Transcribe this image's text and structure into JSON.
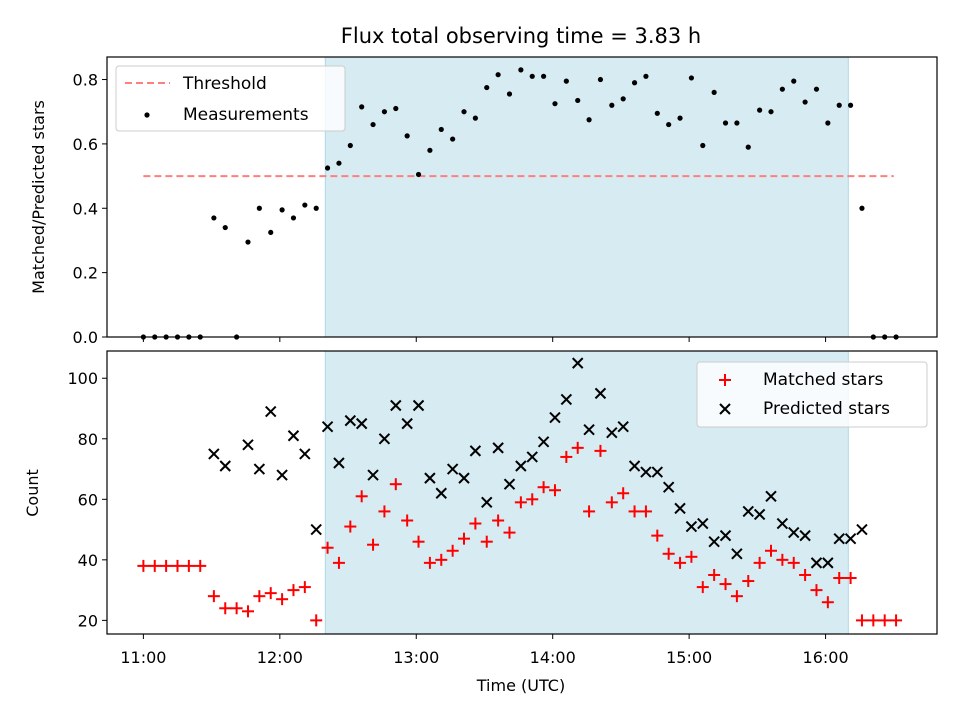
{
  "chart_data": [
    {
      "type": "scatter",
      "title": "Flux total observing time = 3.83 h",
      "xlabel": "",
      "ylabel": "Matched/Predicted stars",
      "xlim": [
        "10:44",
        "16:49"
      ],
      "ylim": [
        0,
        0.87
      ],
      "yticks": [
        "0.0",
        "0.2",
        "0.4",
        "0.6",
        "0.8"
      ],
      "grid": false,
      "legend_position": "upper left",
      "highlight_span": {
        "start": "12:20",
        "end": "16:10",
        "color": "#add8e6"
      },
      "threshold": {
        "name": "Threshold",
        "value": 0.5,
        "x_start": "11:00",
        "x_end": "16:30",
        "color": "#ff7f7f"
      },
      "series": [
        {
          "name": "Measurements",
          "color": "#000000",
          "points": [
            [
              "11:00",
              0.0
            ],
            [
              "11:05",
              0.0
            ],
            [
              "11:10",
              0.0
            ],
            [
              "11:15",
              0.0
            ],
            [
              "11:20",
              0.0
            ],
            [
              "11:25",
              0.0
            ],
            [
              "11:31",
              0.37
            ],
            [
              "11:36",
              0.34
            ],
            [
              "11:41",
              0.0
            ],
            [
              "11:46",
              0.295
            ],
            [
              "11:51",
              0.4
            ],
            [
              "11:56",
              0.325
            ],
            [
              "12:01",
              0.395
            ],
            [
              "12:06",
              0.37
            ],
            [
              "12:11",
              0.41
            ],
            [
              "12:16",
              0.4
            ],
            [
              "12:21",
              0.525
            ],
            [
              "12:26",
              0.54
            ],
            [
              "12:31",
              0.595
            ],
            [
              "12:36",
              0.715
            ],
            [
              "12:41",
              0.66
            ],
            [
              "12:46",
              0.7
            ],
            [
              "12:51",
              0.71
            ],
            [
              "12:56",
              0.625
            ],
            [
              "13:01",
              0.505
            ],
            [
              "13:06",
              0.58
            ],
            [
              "13:11",
              0.645
            ],
            [
              "13:16",
              0.615
            ],
            [
              "13:21",
              0.7
            ],
            [
              "13:26",
              0.68
            ],
            [
              "13:31",
              0.775
            ],
            [
              "13:36",
              0.815
            ],
            [
              "13:41",
              0.755
            ],
            [
              "13:46",
              0.83
            ],
            [
              "13:51",
              0.81
            ],
            [
              "13:56",
              0.81
            ],
            [
              "14:01",
              0.725
            ],
            [
              "14:06",
              0.795
            ],
            [
              "14:11",
              0.735
            ],
            [
              "14:16",
              0.675
            ],
            [
              "14:21",
              0.8
            ],
            [
              "14:26",
              0.72
            ],
            [
              "14:31",
              0.74
            ],
            [
              "14:36",
              0.79
            ],
            [
              "14:41",
              0.81
            ],
            [
              "14:46",
              0.695
            ],
            [
              "14:51",
              0.66
            ],
            [
              "14:56",
              0.68
            ],
            [
              "15:01",
              0.805
            ],
            [
              "15:06",
              0.595
            ],
            [
              "15:11",
              0.76
            ],
            [
              "15:16",
              0.665
            ],
            [
              "15:21",
              0.665
            ],
            [
              "15:26",
              0.59
            ],
            [
              "15:31",
              0.705
            ],
            [
              "15:36",
              0.7
            ],
            [
              "15:41",
              0.77
            ],
            [
              "15:46",
              0.795
            ],
            [
              "15:51",
              0.73
            ],
            [
              "15:56",
              0.77
            ],
            [
              "16:01",
              0.665
            ],
            [
              "16:06",
              0.72
            ],
            [
              "16:11",
              0.72
            ],
            [
              "16:16",
              0.4
            ],
            [
              "16:21",
              0.0
            ],
            [
              "16:26",
              0.0
            ],
            [
              "16:31",
              0.0
            ]
          ]
        }
      ]
    },
    {
      "type": "scatter",
      "title": "",
      "xlabel": "Time (UTC)",
      "ylabel": "Count",
      "xlim": [
        "10:44",
        "16:49"
      ],
      "ylim": [
        15.5,
        109
      ],
      "xticks": [
        "11:00",
        "12:00",
        "13:00",
        "14:00",
        "15:00",
        "16:00"
      ],
      "yticks": [
        "20",
        "40",
        "60",
        "80",
        "100"
      ],
      "grid": false,
      "legend_position": "upper right",
      "highlight_span": {
        "start": "12:20",
        "end": "16:10",
        "color": "#add8e6"
      },
      "series": [
        {
          "name": "Matched stars",
          "color": "#ff0000",
          "marker": "+",
          "points": [
            [
              "11:00",
              38
            ],
            [
              "11:05",
              38
            ],
            [
              "11:10",
              38
            ],
            [
              "11:15",
              38
            ],
            [
              "11:20",
              38
            ],
            [
              "11:25",
              38
            ],
            [
              "11:31",
              28
            ],
            [
              "11:36",
              24
            ],
            [
              "11:41",
              24
            ],
            [
              "11:46",
              23
            ],
            [
              "11:51",
              28
            ],
            [
              "11:56",
              29
            ],
            [
              "12:01",
              27
            ],
            [
              "12:06",
              30
            ],
            [
              "12:11",
              31
            ],
            [
              "12:16",
              20
            ],
            [
              "12:21",
              44
            ],
            [
              "12:26",
              39
            ],
            [
              "12:31",
              51
            ],
            [
              "12:36",
              61
            ],
            [
              "12:41",
              45
            ],
            [
              "12:46",
              56
            ],
            [
              "12:51",
              65
            ],
            [
              "12:56",
              53
            ],
            [
              "13:01",
              46
            ],
            [
              "13:06",
              39
            ],
            [
              "13:11",
              40
            ],
            [
              "13:16",
              43
            ],
            [
              "13:21",
              47
            ],
            [
              "13:26",
              52
            ],
            [
              "13:31",
              46
            ],
            [
              "13:36",
              53
            ],
            [
              "13:41",
              49
            ],
            [
              "13:46",
              59
            ],
            [
              "13:51",
              60
            ],
            [
              "13:56",
              64
            ],
            [
              "14:01",
              63
            ],
            [
              "14:06",
              74
            ],
            [
              "14:11",
              77
            ],
            [
              "14:16",
              56
            ],
            [
              "14:21",
              76
            ],
            [
              "14:26",
              59
            ],
            [
              "14:31",
              62
            ],
            [
              "14:36",
              56
            ],
            [
              "14:41",
              56
            ],
            [
              "14:46",
              48
            ],
            [
              "14:51",
              42
            ],
            [
              "14:56",
              39
            ],
            [
              "15:01",
              41
            ],
            [
              "15:06",
              31
            ],
            [
              "15:11",
              35
            ],
            [
              "15:16",
              32
            ],
            [
              "15:21",
              28
            ],
            [
              "15:26",
              33
            ],
            [
              "15:31",
              39
            ],
            [
              "15:36",
              43
            ],
            [
              "15:41",
              40
            ],
            [
              "15:46",
              39
            ],
            [
              "15:51",
              35
            ],
            [
              "15:56",
              30
            ],
            [
              "16:01",
              26
            ],
            [
              "16:06",
              34
            ],
            [
              "16:11",
              34
            ],
            [
              "16:16",
              20
            ],
            [
              "16:21",
              20
            ],
            [
              "16:26",
              20
            ],
            [
              "16:31",
              20
            ]
          ]
        },
        {
          "name": "Predicted stars",
          "color": "#000000",
          "marker": "x",
          "points": [
            [
              "11:31",
              75
            ],
            [
              "11:36",
              71
            ],
            [
              "11:46",
              78
            ],
            [
              "11:51",
              70
            ],
            [
              "11:56",
              89
            ],
            [
              "12:01",
              68
            ],
            [
              "12:06",
              81
            ],
            [
              "12:11",
              75
            ],
            [
              "12:16",
              50
            ],
            [
              "12:21",
              84
            ],
            [
              "12:26",
              72
            ],
            [
              "12:31",
              86
            ],
            [
              "12:36",
              85
            ],
            [
              "12:41",
              68
            ],
            [
              "12:46",
              80
            ],
            [
              "12:51",
              91
            ],
            [
              "12:56",
              85
            ],
            [
              "13:01",
              91
            ],
            [
              "13:06",
              67
            ],
            [
              "13:11",
              62
            ],
            [
              "13:16",
              70
            ],
            [
              "13:21",
              67
            ],
            [
              "13:26",
              76
            ],
            [
              "13:31",
              59
            ],
            [
              "13:36",
              77
            ],
            [
              "13:41",
              65
            ],
            [
              "13:46",
              71
            ],
            [
              "13:51",
              74
            ],
            [
              "13:56",
              79
            ],
            [
              "14:01",
              87
            ],
            [
              "14:06",
              93
            ],
            [
              "14:11",
              105
            ],
            [
              "14:16",
              83
            ],
            [
              "14:21",
              95
            ],
            [
              "14:26",
              82
            ],
            [
              "14:31",
              84
            ],
            [
              "14:36",
              71
            ],
            [
              "14:41",
              69
            ],
            [
              "14:46",
              69
            ],
            [
              "14:51",
              64
            ],
            [
              "14:56",
              57
            ],
            [
              "15:01",
              51
            ],
            [
              "15:06",
              52
            ],
            [
              "15:11",
              46
            ],
            [
              "15:16",
              48
            ],
            [
              "15:21",
              42
            ],
            [
              "15:26",
              56
            ],
            [
              "15:31",
              55
            ],
            [
              "15:36",
              61
            ],
            [
              "15:41",
              52
            ],
            [
              "15:46",
              49
            ],
            [
              "15:51",
              48
            ],
            [
              "15:56",
              39
            ],
            [
              "16:01",
              39
            ],
            [
              "16:06",
              47
            ],
            [
              "16:11",
              47
            ],
            [
              "16:16",
              50
            ]
          ]
        }
      ]
    }
  ]
}
